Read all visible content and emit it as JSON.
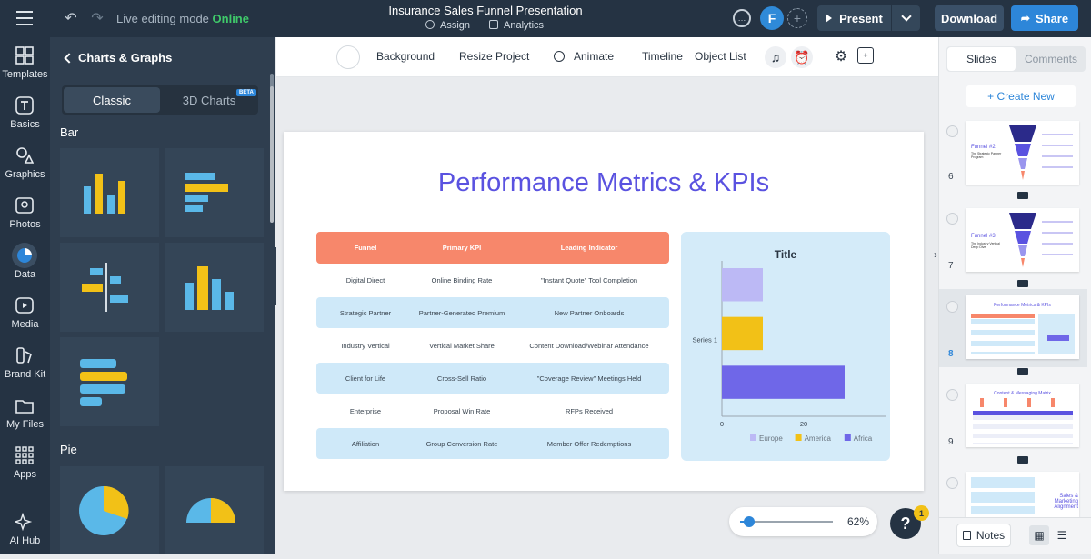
{
  "header": {
    "mode_label": "Live editing mode",
    "mode_status": "Online",
    "project_title": "Insurance Sales Funnel Presentation",
    "assign_label": "Assign",
    "analytics_label": "Analytics",
    "avatar_initial": "F",
    "present_label": "Present",
    "download_label": "Download",
    "share_label": "Share",
    "accent": "#2d86d9"
  },
  "rail": {
    "items": [
      {
        "label": "Templates"
      },
      {
        "label": "Basics"
      },
      {
        "label": "Graphics"
      },
      {
        "label": "Photos"
      },
      {
        "label": "Data"
      },
      {
        "label": "Media"
      },
      {
        "label": "Brand Kit"
      },
      {
        "label": "My Files"
      },
      {
        "label": "Apps"
      },
      {
        "label": "AI Hub"
      }
    ]
  },
  "panel": {
    "title": "Charts & Graphs",
    "tab_classic": "Classic",
    "tab_3d": "3D Charts",
    "beta_badge": "BETA",
    "section_bar": "Bar",
    "section_pie": "Pie"
  },
  "toolbar": {
    "background": "Background",
    "resize": "Resize Project",
    "animate": "Animate",
    "timeline": "Timeline",
    "object_list": "Object List"
  },
  "slide": {
    "title": "Performance Metrics & KPIs",
    "title_color": "#5a52e0",
    "table": {
      "headers": [
        "Funnel",
        "Primary KPI",
        "Leading Indicator"
      ],
      "rows": [
        [
          "Digital Direct",
          "Online Binding Rate",
          "\"Instant Quote\" Tool Completion"
        ],
        [
          "Strategic Partner",
          "Partner-Generated Premium",
          "New Partner Onboards"
        ],
        [
          "Industry Vertical",
          "Vertical Market Share",
          "Content Download/Webinar Attendance"
        ],
        [
          "Client for Life",
          "Cross-Sell Ratio",
          "\"Coverage Review\" Meetings Held"
        ],
        [
          "Enterprise",
          "Proposal Win Rate",
          "RFPs Received"
        ],
        [
          "Affiliation",
          "Group Conversion Rate",
          "Member Offer Redemptions"
        ]
      ]
    }
  },
  "chart_data": {
    "type": "bar",
    "orientation": "horizontal",
    "title": "Title",
    "categories": [
      "Series 1"
    ],
    "series": [
      {
        "name": "Europe",
        "values": [
          10
        ],
        "color": "#bcb9f5"
      },
      {
        "name": "America",
        "values": [
          10
        ],
        "color": "#f2c117"
      },
      {
        "name": "Africa",
        "values": [
          30
        ],
        "color": "#6f67e8"
      }
    ],
    "x_ticks": [
      "0",
      "20"
    ],
    "xlim": [
      0,
      40
    ],
    "legend": "bottom"
  },
  "right_panel": {
    "tab_slides": "Slides",
    "tab_comments": "Comments",
    "create_new": "+ Create New",
    "slides": [
      {
        "number": "6",
        "title": "Funnel #2",
        "subtitle": "The Strategic Partner Program"
      },
      {
        "number": "7",
        "title": "Funnel #3",
        "subtitle": "The Industry Vertical Deep Dive"
      },
      {
        "number": "8",
        "title": "Performance Metrics & KPIs",
        "subtitle": ""
      },
      {
        "number": "9",
        "title": "Content & Messaging Matrix",
        "subtitle": ""
      },
      {
        "number": "",
        "title": "Sales & Marketing Alignment",
        "subtitle": ""
      }
    ],
    "notes_label": "Notes"
  },
  "zoom": {
    "value": "62%",
    "level": 0.1
  },
  "help": {
    "label": "?",
    "badge": "1"
  }
}
